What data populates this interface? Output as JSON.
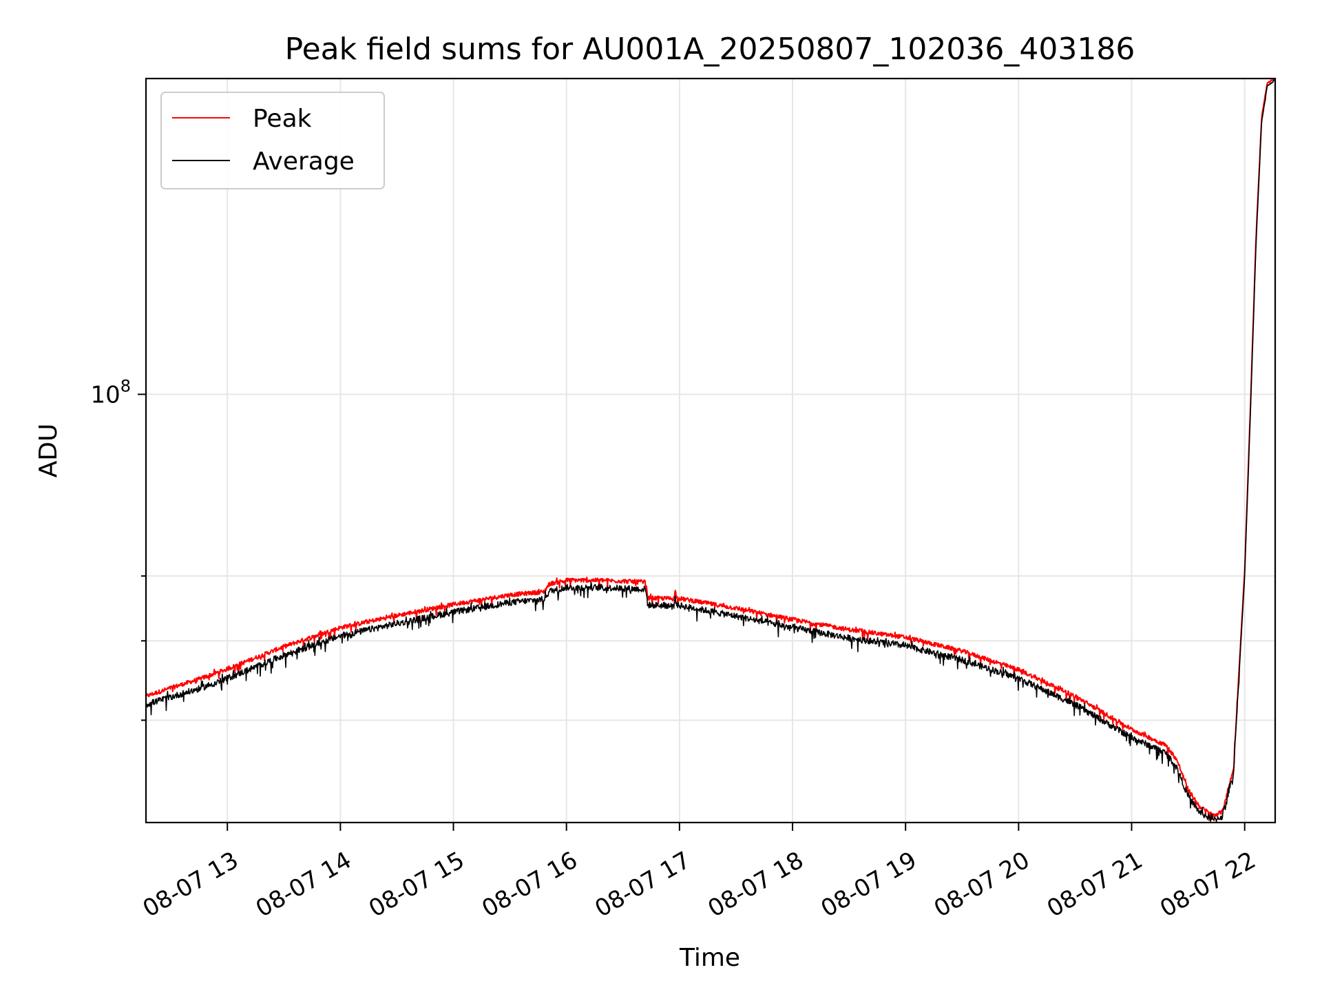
{
  "chart_data": {
    "type": "line",
    "title": "Peak field sums for AU001A_20250807_102036_403186",
    "xlabel": "Time",
    "ylabel": "ADU",
    "y_scale": "log",
    "grid": true,
    "legend": "top-left",
    "x_tick_labels": [
      "08-07 13",
      "08-07 14",
      "08-07 15",
      "08-07 16",
      "08-07 17",
      "08-07 18",
      "08-07 19",
      "08-07 20",
      "08-07 21",
      "08-07 22"
    ],
    "x_ticks_hours": [
      13,
      14,
      15,
      16,
      17,
      18,
      19,
      20,
      21,
      22
    ],
    "xlim_hours": [
      12.28,
      22.27
    ],
    "y_major_ticks": [
      {
        "value": 100000000,
        "label_base": "10",
        "label_exp": "8"
      }
    ],
    "y_minor_ticks": [
      40000000,
      50000000,
      60000000
    ],
    "ylim": [
      30000000,
      243000000
    ],
    "series": [
      {
        "name": "Peak",
        "color": "#ff0000",
        "noise": 0.012,
        "points": [
          [
            12.28,
            42800000
          ],
          [
            12.5,
            43800000
          ],
          [
            12.75,
            44900000
          ],
          [
            13.0,
            46200000
          ],
          [
            13.5,
            49200000
          ],
          [
            14.0,
            51900000
          ],
          [
            14.5,
            53700000
          ],
          [
            15.0,
            55400000
          ],
          [
            15.5,
            56900000
          ],
          [
            15.8,
            57400000
          ],
          [
            15.85,
            58700000
          ],
          [
            16.0,
            59300000
          ],
          [
            16.3,
            59300000
          ],
          [
            16.7,
            59000000
          ],
          [
            16.72,
            56400000
          ],
          [
            16.95,
            56300000
          ],
          [
            16.96,
            57600000
          ],
          [
            16.98,
            56400000
          ],
          [
            17.5,
            54800000
          ],
          [
            18.0,
            53100000
          ],
          [
            18.5,
            51600000
          ],
          [
            19.0,
            50500000
          ],
          [
            19.5,
            48600000
          ],
          [
            20.0,
            46100000
          ],
          [
            20.5,
            42800000
          ],
          [
            21.0,
            39000000
          ],
          [
            21.3,
            37300000
          ],
          [
            21.4,
            35800000
          ],
          [
            21.5,
            32900000
          ],
          [
            21.6,
            31400000
          ],
          [
            21.72,
            30600000
          ],
          [
            21.8,
            30900000
          ],
          [
            21.9,
            34800000
          ],
          [
            22.0,
            61000000
          ],
          [
            22.05,
            96000000
          ],
          [
            22.1,
            155000000
          ],
          [
            22.15,
            218000000
          ],
          [
            22.2,
            240000000
          ],
          [
            22.27,
            243000000
          ]
        ]
      },
      {
        "name": "Average",
        "color": "#000000",
        "noise": 0.018,
        "points": [
          [
            12.28,
            41800000
          ],
          [
            12.5,
            42700000
          ],
          [
            12.75,
            43700000
          ],
          [
            13.0,
            45000000
          ],
          [
            13.5,
            48000000
          ],
          [
            14.0,
            50700000
          ],
          [
            14.5,
            52500000
          ],
          [
            15.0,
            54200000
          ],
          [
            15.5,
            55700000
          ],
          [
            15.8,
            56200000
          ],
          [
            15.85,
            57500000
          ],
          [
            16.0,
            58100000
          ],
          [
            16.3,
            58100000
          ],
          [
            16.7,
            57800000
          ],
          [
            16.72,
            55300000
          ],
          [
            16.95,
            55200000
          ],
          [
            16.96,
            56400000
          ],
          [
            16.98,
            55300000
          ],
          [
            17.5,
            53600000
          ],
          [
            18.0,
            51900000
          ],
          [
            18.5,
            50400000
          ],
          [
            19.0,
            49300000
          ],
          [
            19.5,
            47400000
          ],
          [
            20.0,
            45000000
          ],
          [
            20.5,
            41800000
          ],
          [
            21.0,
            38100000
          ],
          [
            21.3,
            36500000
          ],
          [
            21.4,
            35000000
          ],
          [
            21.5,
            32300000
          ],
          [
            21.6,
            30900000
          ],
          [
            21.72,
            30200000
          ],
          [
            21.8,
            30500000
          ],
          [
            21.9,
            34300000
          ],
          [
            22.0,
            60000000
          ],
          [
            22.05,
            94000000
          ],
          [
            22.1,
            152000000
          ],
          [
            22.15,
            215000000
          ],
          [
            22.2,
            238000000
          ],
          [
            22.27,
            242000000
          ]
        ]
      }
    ]
  }
}
